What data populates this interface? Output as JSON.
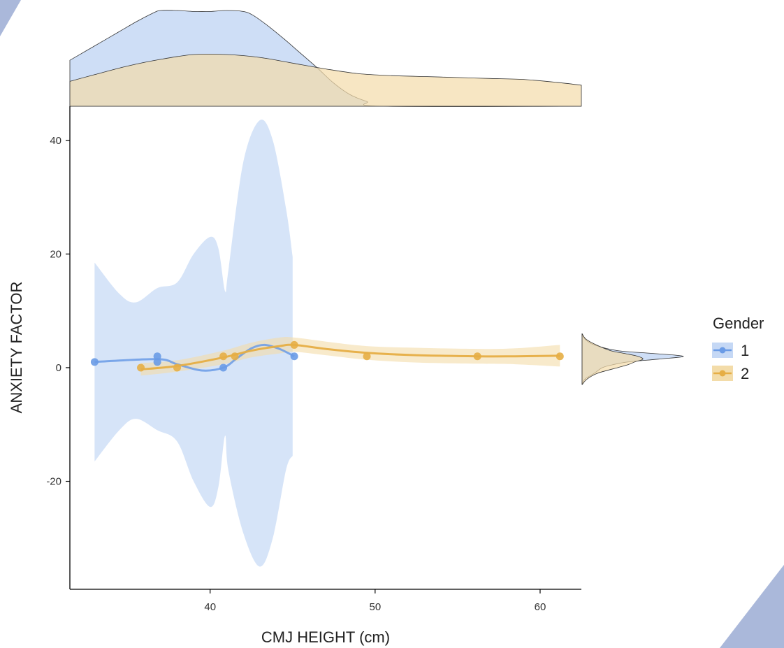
{
  "colors": {
    "series1": "#6a9be6",
    "series1_fill": "#c5d8f5",
    "series2": "#e6ae45",
    "series2_fill": "#f3dca9",
    "overlap": "#e0d6bf",
    "decor": "#aab8da",
    "axis": "#000000"
  },
  "chart_data": {
    "type": "scatter",
    "xlabel": "CMJ HEIGHT (cm)",
    "ylabel": "ANXIETY FACTOR",
    "xlim": [
      31.5,
      62.5
    ],
    "ylim": [
      -39,
      46
    ],
    "x_ticks": [
      40,
      50,
      60
    ],
    "y_ticks": [
      40,
      20,
      0,
      -20
    ],
    "x_tick_labels": [
      "40",
      "50",
      "60"
    ],
    "y_tick_labels": [
      "40",
      "20",
      "0",
      "-20"
    ],
    "legend": {
      "title": "Gender",
      "entries": [
        "1",
        "2"
      ],
      "placement": "right"
    },
    "series": [
      {
        "name": "1",
        "points": [
          [
            33.0,
            1
          ],
          [
            36.8,
            1
          ],
          [
            36.8,
            2
          ],
          [
            40.8,
            0
          ],
          [
            45.1,
            2
          ]
        ],
        "smooth": [
          [
            33.0,
            1.0
          ],
          [
            36.8,
            1.5
          ],
          [
            38.0,
            0.6
          ],
          [
            39.5,
            -0.5
          ],
          [
            40.8,
            0.0
          ],
          [
            41.6,
            1.6
          ],
          [
            42.5,
            3.4
          ],
          [
            43.3,
            4.0
          ],
          [
            44.2,
            3.3
          ],
          [
            45.1,
            2.0
          ]
        ],
        "ci_upper": [
          [
            33.0,
            18.5
          ],
          [
            34.5,
            13.0
          ],
          [
            35.5,
            11.5
          ],
          [
            36.8,
            14.0
          ],
          [
            38.0,
            15.0
          ],
          [
            39.0,
            20.0
          ],
          [
            40.0,
            23.0
          ],
          [
            40.5,
            21.0
          ],
          [
            40.9,
            13.5
          ],
          [
            41.1,
            17.0
          ],
          [
            42.0,
            36.0
          ],
          [
            43.0,
            43.5
          ],
          [
            43.8,
            40.0
          ],
          [
            44.6,
            28.0
          ],
          [
            45.0,
            19.5
          ]
        ],
        "ci_lower": [
          [
            33.0,
            -16.5
          ],
          [
            34.5,
            -11.0
          ],
          [
            35.5,
            -9.0
          ],
          [
            36.8,
            -11.0
          ],
          [
            38.0,
            -13.0
          ],
          [
            39.0,
            -20.0
          ],
          [
            40.0,
            -24.5
          ],
          [
            40.5,
            -21.0
          ],
          [
            40.9,
            -12.0
          ],
          [
            41.1,
            -18.0
          ],
          [
            42.0,
            -29.0
          ],
          [
            43.0,
            -35.0
          ],
          [
            43.8,
            -30.0
          ],
          [
            44.6,
            -18.0
          ],
          [
            45.0,
            -15.5
          ]
        ]
      },
      {
        "name": "2",
        "points": [
          [
            35.8,
            0
          ],
          [
            38.0,
            0
          ],
          [
            40.8,
            2
          ],
          [
            41.5,
            2
          ],
          [
            45.1,
            4
          ],
          [
            49.5,
            2
          ],
          [
            56.2,
            2
          ],
          [
            61.2,
            2
          ]
        ],
        "smooth": [
          [
            35.8,
            -0.3
          ],
          [
            38.0,
            0.3
          ],
          [
            40.8,
            1.8
          ],
          [
            42.5,
            3.0
          ],
          [
            44.2,
            3.8
          ],
          [
            45.1,
            4.0
          ],
          [
            47.0,
            3.3
          ],
          [
            49.5,
            2.6
          ],
          [
            52.5,
            2.2
          ],
          [
            56.2,
            2.0
          ],
          [
            58.5,
            2.0
          ],
          [
            61.2,
            2.1
          ]
        ],
        "ci_upper": [
          [
            35.8,
            0.8
          ],
          [
            38.0,
            1.3
          ],
          [
            40.8,
            3.0
          ],
          [
            42.5,
            4.4
          ],
          [
            44.2,
            5.3
          ],
          [
            45.1,
            5.3
          ],
          [
            47.0,
            4.6
          ],
          [
            49.5,
            3.8
          ],
          [
            52.5,
            3.5
          ],
          [
            56.2,
            3.3
          ],
          [
            58.5,
            3.4
          ],
          [
            61.2,
            4.0
          ]
        ],
        "ci_lower": [
          [
            35.8,
            -1.4
          ],
          [
            38.0,
            -0.7
          ],
          [
            40.8,
            0.6
          ],
          [
            42.5,
            1.8
          ],
          [
            44.2,
            2.5
          ],
          [
            45.1,
            2.8
          ],
          [
            47.0,
            2.2
          ],
          [
            49.5,
            1.4
          ],
          [
            52.5,
            0.9
          ],
          [
            56.2,
            0.7
          ],
          [
            58.5,
            0.6
          ],
          [
            61.2,
            0.2
          ]
        ]
      }
    ],
    "marginal_x_density": [
      {
        "name": "1",
        "x": [
          31.5,
          32.5,
          33.5,
          34.5,
          35.5,
          36.5,
          37.0,
          38.0,
          39.0,
          40.0,
          41.0,
          42.0,
          42.6,
          43.5,
          44.5,
          45.5,
          46.5,
          47.5,
          48.5,
          49.5,
          50.5,
          62.5
        ],
        "density": [
          0.48,
          0.58,
          0.68,
          0.78,
          0.88,
          0.97,
          1.0,
          1.0,
          0.99,
          0.99,
          1.0,
          0.99,
          0.95,
          0.84,
          0.7,
          0.55,
          0.4,
          0.24,
          0.12,
          0.05,
          0.0,
          0.0
        ]
      },
      {
        "name": "2",
        "x": [
          31.5,
          33.0,
          35.0,
          37.0,
          39.0,
          41.0,
          43.0,
          45.0,
          47.0,
          49.0,
          51.0,
          53.0,
          55.0,
          57.0,
          59.0,
          61.0,
          62.5
        ],
        "density": [
          0.26,
          0.33,
          0.42,
          0.49,
          0.54,
          0.54,
          0.51,
          0.45,
          0.39,
          0.34,
          0.32,
          0.31,
          0.3,
          0.29,
          0.28,
          0.25,
          0.22
        ]
      }
    ],
    "marginal_y_density": [
      {
        "name": "1",
        "y": [
          -3.0,
          -2.0,
          -1.0,
          0.0,
          0.5,
          1.0,
          1.5,
          2.0,
          2.5,
          3.0,
          4.0,
          5.0,
          6.0
        ],
        "density": [
          0.0,
          0.03,
          0.12,
          0.2,
          0.3,
          0.45,
          0.75,
          1.0,
          0.7,
          0.35,
          0.12,
          0.03,
          0.0
        ]
      },
      {
        "name": "2",
        "y": [
          -3.0,
          -2.0,
          -1.0,
          0.0,
          0.5,
          1.0,
          1.5,
          2.0,
          2.5,
          3.0,
          4.0,
          5.0,
          6.0
        ],
        "density": [
          0.0,
          0.05,
          0.15,
          0.35,
          0.45,
          0.52,
          0.6,
          0.55,
          0.42,
          0.28,
          0.14,
          0.04,
          0.0
        ]
      }
    ]
  }
}
